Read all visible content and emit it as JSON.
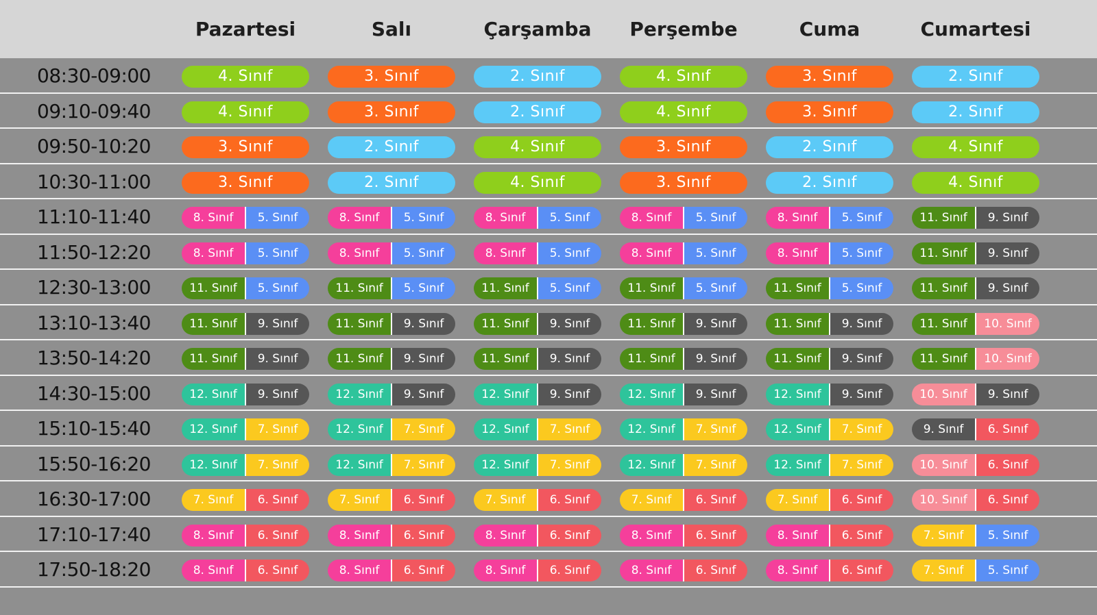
{
  "days": [
    "Pazartesi",
    "Salı",
    "Çarşamba",
    "Perşembe",
    "Cuma",
    "Cumartesi"
  ],
  "colors": {
    "2": "#5ccaf7",
    "3": "#fc6a1e",
    "4": "#8fcf1c",
    "5": "#5a8ff5",
    "6": "#f2575f",
    "7": "#fbc91f",
    "8": "#f53f9b",
    "9": "#565656",
    "10": "#f78d98",
    "11": "#4e8c16",
    "12": "#2ec49b"
  },
  "schedule": [
    {
      "time": "08:30-09:00",
      "cells": [
        [
          {
            "grade": "4",
            "text": "4. Sınıf"
          }
        ],
        [
          {
            "grade": "3",
            "text": "3. Sınıf"
          }
        ],
        [
          {
            "grade": "2",
            "text": "2. Sınıf"
          }
        ],
        [
          {
            "grade": "4",
            "text": "4. Sınıf"
          }
        ],
        [
          {
            "grade": "3",
            "text": "3. Sınıf"
          }
        ],
        [
          {
            "grade": "2",
            "text": "2. Sınıf"
          }
        ]
      ]
    },
    {
      "time": "09:10-09:40",
      "cells": [
        [
          {
            "grade": "4",
            "text": "4. Sınıf"
          }
        ],
        [
          {
            "grade": "3",
            "text": "3. Sınıf"
          }
        ],
        [
          {
            "grade": "2",
            "text": "2. Sınıf"
          }
        ],
        [
          {
            "grade": "4",
            "text": "4. Sınıf"
          }
        ],
        [
          {
            "grade": "3",
            "text": "3. Sınıf"
          }
        ],
        [
          {
            "grade": "2",
            "text": "2. Sınıf"
          }
        ]
      ]
    },
    {
      "time": "09:50-10:20",
      "cells": [
        [
          {
            "grade": "3",
            "text": "3. Sınıf"
          }
        ],
        [
          {
            "grade": "2",
            "text": "2. Sınıf"
          }
        ],
        [
          {
            "grade": "4",
            "text": "4. Sınıf"
          }
        ],
        [
          {
            "grade": "3",
            "text": "3. Sınıf"
          }
        ],
        [
          {
            "grade": "2",
            "text": "2. Sınıf"
          }
        ],
        [
          {
            "grade": "4",
            "text": "4. Sınıf"
          }
        ]
      ]
    },
    {
      "time": "10:30-11:00",
      "cells": [
        [
          {
            "grade": "3",
            "text": "3. Sınıf"
          }
        ],
        [
          {
            "grade": "2",
            "text": "2. Sınıf"
          }
        ],
        [
          {
            "grade": "4",
            "text": "4. Sınıf"
          }
        ],
        [
          {
            "grade": "3",
            "text": "3. Sınıf"
          }
        ],
        [
          {
            "grade": "2",
            "text": "2. Sınıf"
          }
        ],
        [
          {
            "grade": "4",
            "text": "4. Sınıf"
          }
        ]
      ]
    },
    {
      "time": "11:10-11:40",
      "cells": [
        [
          {
            "grade": "8",
            "text": "8. Sınıf"
          },
          {
            "grade": "5",
            "text": "5. Sınıf"
          }
        ],
        [
          {
            "grade": "8",
            "text": "8. Sınıf"
          },
          {
            "grade": "5",
            "text": "5. Sınıf"
          }
        ],
        [
          {
            "grade": "8",
            "text": "8. Sınıf"
          },
          {
            "grade": "5",
            "text": "5. Sınıf"
          }
        ],
        [
          {
            "grade": "8",
            "text": "8. Sınıf"
          },
          {
            "grade": "5",
            "text": "5. Sınıf"
          }
        ],
        [
          {
            "grade": "8",
            "text": "8. Sınıf"
          },
          {
            "grade": "5",
            "text": "5. Sınıf"
          }
        ],
        [
          {
            "grade": "11",
            "text": "11. Sınıf"
          },
          {
            "grade": "9",
            "text": "9. Sınıf"
          }
        ]
      ]
    },
    {
      "time": "11:50-12:20",
      "cells": [
        [
          {
            "grade": "8",
            "text": "8. Sınıf"
          },
          {
            "grade": "5",
            "text": "5. Sınıf"
          }
        ],
        [
          {
            "grade": "8",
            "text": "8. Sınıf"
          },
          {
            "grade": "5",
            "text": "5. Sınıf"
          }
        ],
        [
          {
            "grade": "8",
            "text": "8. Sınıf"
          },
          {
            "grade": "5",
            "text": "5. Sınıf"
          }
        ],
        [
          {
            "grade": "8",
            "text": "8. Sınıf"
          },
          {
            "grade": "5",
            "text": "5. Sınıf"
          }
        ],
        [
          {
            "grade": "8",
            "text": "8. Sınıf"
          },
          {
            "grade": "5",
            "text": "5. Sınıf"
          }
        ],
        [
          {
            "grade": "11",
            "text": "11. Sınıf"
          },
          {
            "grade": "9",
            "text": "9. Sınıf"
          }
        ]
      ]
    },
    {
      "time": "12:30-13:00",
      "cells": [
        [
          {
            "grade": "11",
            "text": "11. Sınıf"
          },
          {
            "grade": "5",
            "text": "5. Sınıf"
          }
        ],
        [
          {
            "grade": "11",
            "text": "11. Sınıf"
          },
          {
            "grade": "5",
            "text": "5. Sınıf"
          }
        ],
        [
          {
            "grade": "11",
            "text": "11. Sınıf"
          },
          {
            "grade": "5",
            "text": "5. Sınıf"
          }
        ],
        [
          {
            "grade": "11",
            "text": "11. Sınıf"
          },
          {
            "grade": "5",
            "text": "5. Sınıf"
          }
        ],
        [
          {
            "grade": "11",
            "text": "11. Sınıf"
          },
          {
            "grade": "5",
            "text": "5. Sınıf"
          }
        ],
        [
          {
            "grade": "11",
            "text": "11. Sınıf"
          },
          {
            "grade": "9",
            "text": "9. Sınıf"
          }
        ]
      ]
    },
    {
      "time": "13:10-13:40",
      "cells": [
        [
          {
            "grade": "11",
            "text": "11. Sınıf"
          },
          {
            "grade": "9",
            "text": "9. Sınıf"
          }
        ],
        [
          {
            "grade": "11",
            "text": "11. Sınıf"
          },
          {
            "grade": "9",
            "text": "9. Sınıf"
          }
        ],
        [
          {
            "grade": "11",
            "text": "11. Sınıf"
          },
          {
            "grade": "9",
            "text": "9. Sınıf"
          }
        ],
        [
          {
            "grade": "11",
            "text": "11. Sınıf"
          },
          {
            "grade": "9",
            "text": "9. Sınıf"
          }
        ],
        [
          {
            "grade": "11",
            "text": "11. Sınıf"
          },
          {
            "grade": "9",
            "text": "9. Sınıf"
          }
        ],
        [
          {
            "grade": "11",
            "text": "11. Sınıf"
          },
          {
            "grade": "10",
            "text": "10. Sınıf"
          }
        ]
      ]
    },
    {
      "time": "13:50-14:20",
      "cells": [
        [
          {
            "grade": "11",
            "text": "11. Sınıf"
          },
          {
            "grade": "9",
            "text": "9. Sınıf"
          }
        ],
        [
          {
            "grade": "11",
            "text": "11. Sınıf"
          },
          {
            "grade": "9",
            "text": "9. Sınıf"
          }
        ],
        [
          {
            "grade": "11",
            "text": "11. Sınıf"
          },
          {
            "grade": "9",
            "text": "9. Sınıf"
          }
        ],
        [
          {
            "grade": "11",
            "text": "11. Sınıf"
          },
          {
            "grade": "9",
            "text": "9. Sınıf"
          }
        ],
        [
          {
            "grade": "11",
            "text": "11. Sınıf"
          },
          {
            "grade": "9",
            "text": "9. Sınıf"
          }
        ],
        [
          {
            "grade": "11",
            "text": "11. Sınıf"
          },
          {
            "grade": "10",
            "text": "10. Sınıf"
          }
        ]
      ]
    },
    {
      "time": "14:30-15:00",
      "cells": [
        [
          {
            "grade": "12",
            "text": "12. Sınıf"
          },
          {
            "grade": "9",
            "text": "9. Sınıf"
          }
        ],
        [
          {
            "grade": "12",
            "text": "12. Sınıf"
          },
          {
            "grade": "9",
            "text": "9. Sınıf"
          }
        ],
        [
          {
            "grade": "12",
            "text": "12. Sınıf"
          },
          {
            "grade": "9",
            "text": "9. Sınıf"
          }
        ],
        [
          {
            "grade": "12",
            "text": "12. Sınıf"
          },
          {
            "grade": "9",
            "text": "9. Sınıf"
          }
        ],
        [
          {
            "grade": "12",
            "text": "12. Sınıf"
          },
          {
            "grade": "9",
            "text": "9. Sınıf"
          }
        ],
        [
          {
            "grade": "10",
            "text": "10. Sınıf"
          },
          {
            "grade": "9",
            "text": "9. Sınıf"
          }
        ]
      ]
    },
    {
      "time": "15:10-15:40",
      "cells": [
        [
          {
            "grade": "12",
            "text": "12. Sınıf"
          },
          {
            "grade": "7",
            "text": "7. Sınıf"
          }
        ],
        [
          {
            "grade": "12",
            "text": "12. Sınıf"
          },
          {
            "grade": "7",
            "text": "7. Sınıf"
          }
        ],
        [
          {
            "grade": "12",
            "text": "12. Sınıf"
          },
          {
            "grade": "7",
            "text": "7. Sınıf"
          }
        ],
        [
          {
            "grade": "12",
            "text": "12. Sınıf"
          },
          {
            "grade": "7",
            "text": "7. Sınıf"
          }
        ],
        [
          {
            "grade": "12",
            "text": "12. Sınıf"
          },
          {
            "grade": "7",
            "text": "7. Sınıf"
          }
        ],
        [
          {
            "grade": "9",
            "text": "9. Sınıf"
          },
          {
            "grade": "6",
            "text": "6. Sınıf"
          }
        ]
      ]
    },
    {
      "time": "15:50-16:20",
      "cells": [
        [
          {
            "grade": "12",
            "text": "12. Sınıf"
          },
          {
            "grade": "7",
            "text": "7. Sınıf"
          }
        ],
        [
          {
            "grade": "12",
            "text": "12. Sınıf"
          },
          {
            "grade": "7",
            "text": "7. Sınıf"
          }
        ],
        [
          {
            "grade": "12",
            "text": "12. Sınıf"
          },
          {
            "grade": "7",
            "text": "7. Sınıf"
          }
        ],
        [
          {
            "grade": "12",
            "text": "12. Sınıf"
          },
          {
            "grade": "7",
            "text": "7. Sınıf"
          }
        ],
        [
          {
            "grade": "12",
            "text": "12. Sınıf"
          },
          {
            "grade": "7",
            "text": "7. Sınıf"
          }
        ],
        [
          {
            "grade": "10",
            "text": "10. Sınıf"
          },
          {
            "grade": "6",
            "text": "6. Sınıf"
          }
        ]
      ]
    },
    {
      "time": "16:30-17:00",
      "cells": [
        [
          {
            "grade": "7",
            "text": "7. Sınıf"
          },
          {
            "grade": "6",
            "text": "6. Sınıf"
          }
        ],
        [
          {
            "grade": "7",
            "text": "7. Sınıf"
          },
          {
            "grade": "6",
            "text": "6. Sınıf"
          }
        ],
        [
          {
            "grade": "7",
            "text": "7. Sınıf"
          },
          {
            "grade": "6",
            "text": "6. Sınıf"
          }
        ],
        [
          {
            "grade": "7",
            "text": "7. Sınıf"
          },
          {
            "grade": "6",
            "text": "6. Sınıf"
          }
        ],
        [
          {
            "grade": "7",
            "text": "7. Sınıf"
          },
          {
            "grade": "6",
            "text": "6. Sınıf"
          }
        ],
        [
          {
            "grade": "10",
            "text": "10. Sınıf"
          },
          {
            "grade": "6",
            "text": "6. Sınıf"
          }
        ]
      ]
    },
    {
      "time": "17:10-17:40",
      "cells": [
        [
          {
            "grade": "8",
            "text": "8. Sınıf"
          },
          {
            "grade": "6",
            "text": "6. Sınıf"
          }
        ],
        [
          {
            "grade": "8",
            "text": "8. Sınıf"
          },
          {
            "grade": "6",
            "text": "6. Sınıf"
          }
        ],
        [
          {
            "grade": "8",
            "text": "8. Sınıf"
          },
          {
            "grade": "6",
            "text": "6. Sınıf"
          }
        ],
        [
          {
            "grade": "8",
            "text": "8. Sınıf"
          },
          {
            "grade": "6",
            "text": "6. Sınıf"
          }
        ],
        [
          {
            "grade": "8",
            "text": "8. Sınıf"
          },
          {
            "grade": "6",
            "text": "6. Sınıf"
          }
        ],
        [
          {
            "grade": "7",
            "text": "7. Sınıf"
          },
          {
            "grade": "5",
            "text": "5. Sınıf"
          }
        ]
      ]
    },
    {
      "time": "17:50-18:20",
      "cells": [
        [
          {
            "grade": "8",
            "text": "8. Sınıf"
          },
          {
            "grade": "6",
            "text": "6. Sınıf"
          }
        ],
        [
          {
            "grade": "8",
            "text": "8. Sınıf"
          },
          {
            "grade": "6",
            "text": "6. Sınıf"
          }
        ],
        [
          {
            "grade": "8",
            "text": "8. Sınıf"
          },
          {
            "grade": "6",
            "text": "6. Sınıf"
          }
        ],
        [
          {
            "grade": "8",
            "text": "8. Sınıf"
          },
          {
            "grade": "6",
            "text": "6. Sınıf"
          }
        ],
        [
          {
            "grade": "8",
            "text": "8. Sınıf"
          },
          {
            "grade": "6",
            "text": "6. Sınıf"
          }
        ],
        [
          {
            "grade": "7",
            "text": "7. Sınıf"
          },
          {
            "grade": "5",
            "text": "5. Sınıf"
          }
        ]
      ]
    }
  ]
}
